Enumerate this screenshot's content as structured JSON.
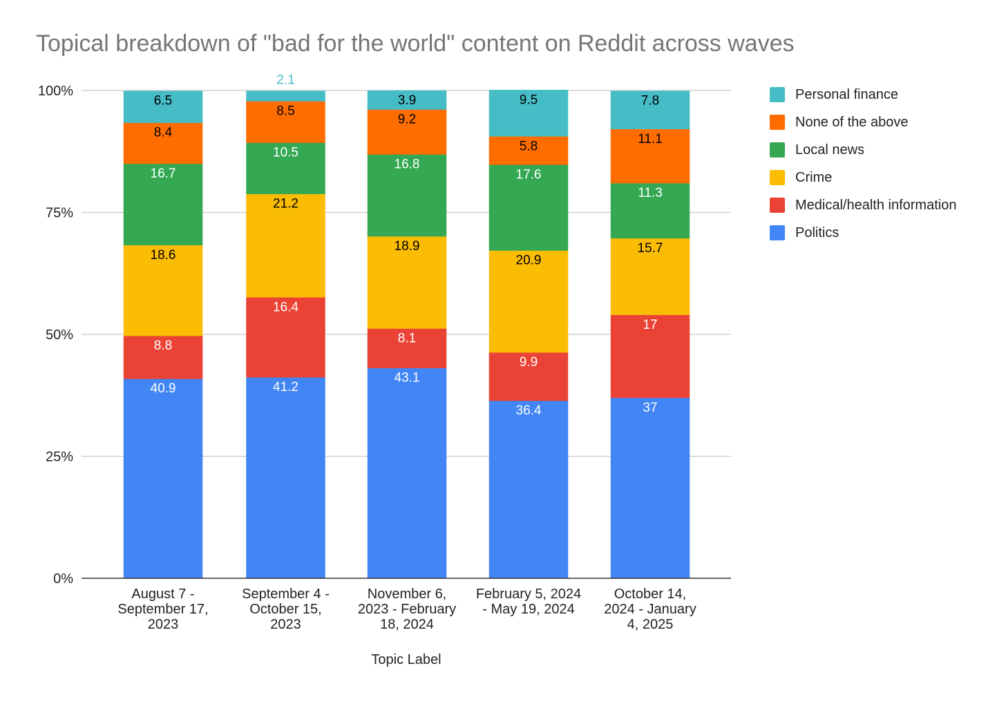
{
  "chart_data": {
    "type": "stacked-bar-100",
    "title": "Topical breakdown of \"bad for the world\" content on Reddit across waves",
    "xlabel": "Topic Label",
    "ylabel": "",
    "ylim": [
      0,
      100
    ],
    "y_ticks": [
      "0%",
      "25%",
      "50%",
      "75%",
      "100%"
    ],
    "grid": true,
    "legend_position": "right",
    "categories": [
      [
        "August 7 -",
        "September 17,",
        "2023"
      ],
      [
        "September 4 -",
        "October 15,",
        "2023"
      ],
      [
        "November 6,",
        "2023 - February",
        "18, 2024"
      ],
      [
        "February 5, 2024",
        "- May 19, 2024"
      ],
      [
        "October 14,",
        "2024 - January",
        "4, 2025"
      ]
    ],
    "series": [
      {
        "name": "Politics",
        "color": "#4285f4",
        "label_color": "#ffffff",
        "values": [
          40.9,
          41.2,
          43.1,
          36.4,
          37
        ]
      },
      {
        "name": "Medical/health information",
        "color": "#ea4335",
        "label_color": "#ffffff",
        "values": [
          8.8,
          16.4,
          8.1,
          9.9,
          17
        ]
      },
      {
        "name": "Crime",
        "color": "#fbbc04",
        "label_color": "#000000",
        "values": [
          18.6,
          21.2,
          18.9,
          20.9,
          15.7
        ]
      },
      {
        "name": "Local news",
        "color": "#34a853",
        "label_color": "#ffffff",
        "values": [
          16.7,
          10.5,
          16.8,
          17.6,
          11.3
        ]
      },
      {
        "name": "None of the above",
        "color": "#ff6d01",
        "label_color": "#000000",
        "values": [
          8.4,
          8.5,
          9.2,
          5.8,
          11.1
        ]
      },
      {
        "name": "Personal finance",
        "color": "#46bdc6",
        "label_color": "#000000",
        "outside_label_color": "#46bdc6",
        "values": [
          6.5,
          2.1,
          3.9,
          9.5,
          7.8
        ]
      }
    ]
  }
}
